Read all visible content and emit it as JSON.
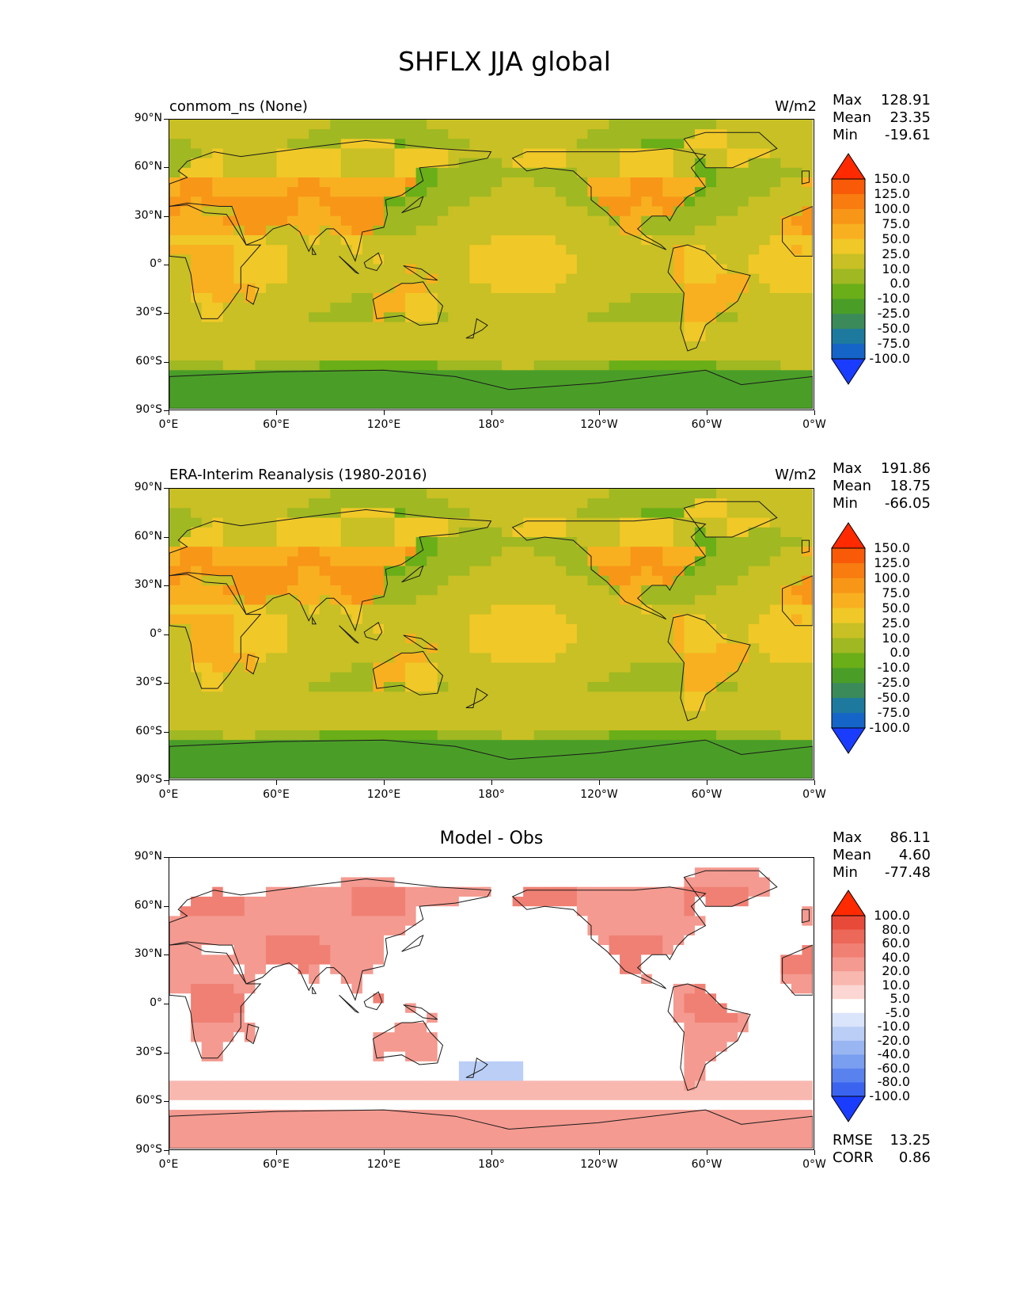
{
  "figure_title": "SHFLX JJA global",
  "icons": [
    "coastline-outline",
    "colorbar-triangle-extensions"
  ],
  "lat_ticks": [
    "90°N",
    "60°N",
    "30°N",
    "0°",
    "30°S",
    "60°S",
    "90°S"
  ],
  "lon_ticks": [
    "0°E",
    "60°E",
    "120°E",
    "180°",
    "120°W",
    "60°W",
    "0°W"
  ],
  "colors": {
    "abs_scale": [
      "#1a3cff",
      "#1565c8",
      "#1d7a9e",
      "#3a8a5a",
      "#4a9e28",
      "#6aae18",
      "#a0b822",
      "#c8c024",
      "#f0c828",
      "#f8b020",
      "#f89618",
      "#f87c10",
      "#f85a08",
      "#ff2a00"
    ],
    "diff_scale": [
      "#1a3cff",
      "#3a64f0",
      "#5a82ee",
      "#7a9ef0",
      "#9ab6f2",
      "#bacef6",
      "#dae4fa",
      "#ffffff",
      "#fbd6d2",
      "#f8b8b0",
      "#f49a90",
      "#f08074",
      "#ec6858",
      "#e84a3a",
      "#ff2a00"
    ]
  },
  "chart_data": [
    {
      "type": "heatmap",
      "panel": "model",
      "left_title": "conmom_ns (None)",
      "units": "W/m2",
      "stats": {
        "max_label": "Max",
        "max": "128.91",
        "mean_label": "Mean",
        "mean": "23.35",
        "min_label": "Min",
        "min": "-19.61"
      },
      "colorbar_levels": [
        "150.0",
        "125.0",
        "100.0",
        "75.0",
        "50.0",
        "25.0",
        "10.0",
        "0.0",
        "-10.0",
        "-25.0",
        "-50.0",
        "-75.0",
        "-100.0"
      ],
      "xlim": [
        0,
        360
      ],
      "ylim": [
        -90,
        90
      ]
    },
    {
      "type": "heatmap",
      "panel": "obs",
      "left_title": "ERA-Interim Reanalysis (1980-2016)",
      "units": "W/m2",
      "stats": {
        "max_label": "Max",
        "max": "191.86",
        "mean_label": "Mean",
        "mean": "18.75",
        "min_label": "Min",
        "min": "-66.05"
      },
      "colorbar_levels": [
        "150.0",
        "125.0",
        "100.0",
        "75.0",
        "50.0",
        "25.0",
        "10.0",
        "0.0",
        "-10.0",
        "-25.0",
        "-50.0",
        "-75.0",
        "-100.0"
      ],
      "xlim": [
        0,
        360
      ],
      "ylim": [
        -90,
        90
      ]
    },
    {
      "type": "heatmap",
      "panel": "diff",
      "center_title": "Model - Obs",
      "stats": {
        "max_label": "Max",
        "max": "86.11",
        "mean_label": "Mean",
        "mean": "4.60",
        "min_label": "Min",
        "min": "-77.48"
      },
      "colorbar_levels": [
        "100.0",
        "80.0",
        "60.0",
        "40.0",
        "20.0",
        "10.0",
        "5.0",
        "-5.0",
        "-10.0",
        "-20.0",
        "-40.0",
        "-60.0",
        "-80.0",
        "-100.0"
      ],
      "metrics": {
        "rmse_label": "RMSE",
        "rmse": "13.25",
        "corr_label": "CORR",
        "corr": "0.86"
      },
      "xlim": [
        0,
        360
      ],
      "ylim": [
        -90,
        90
      ]
    }
  ]
}
